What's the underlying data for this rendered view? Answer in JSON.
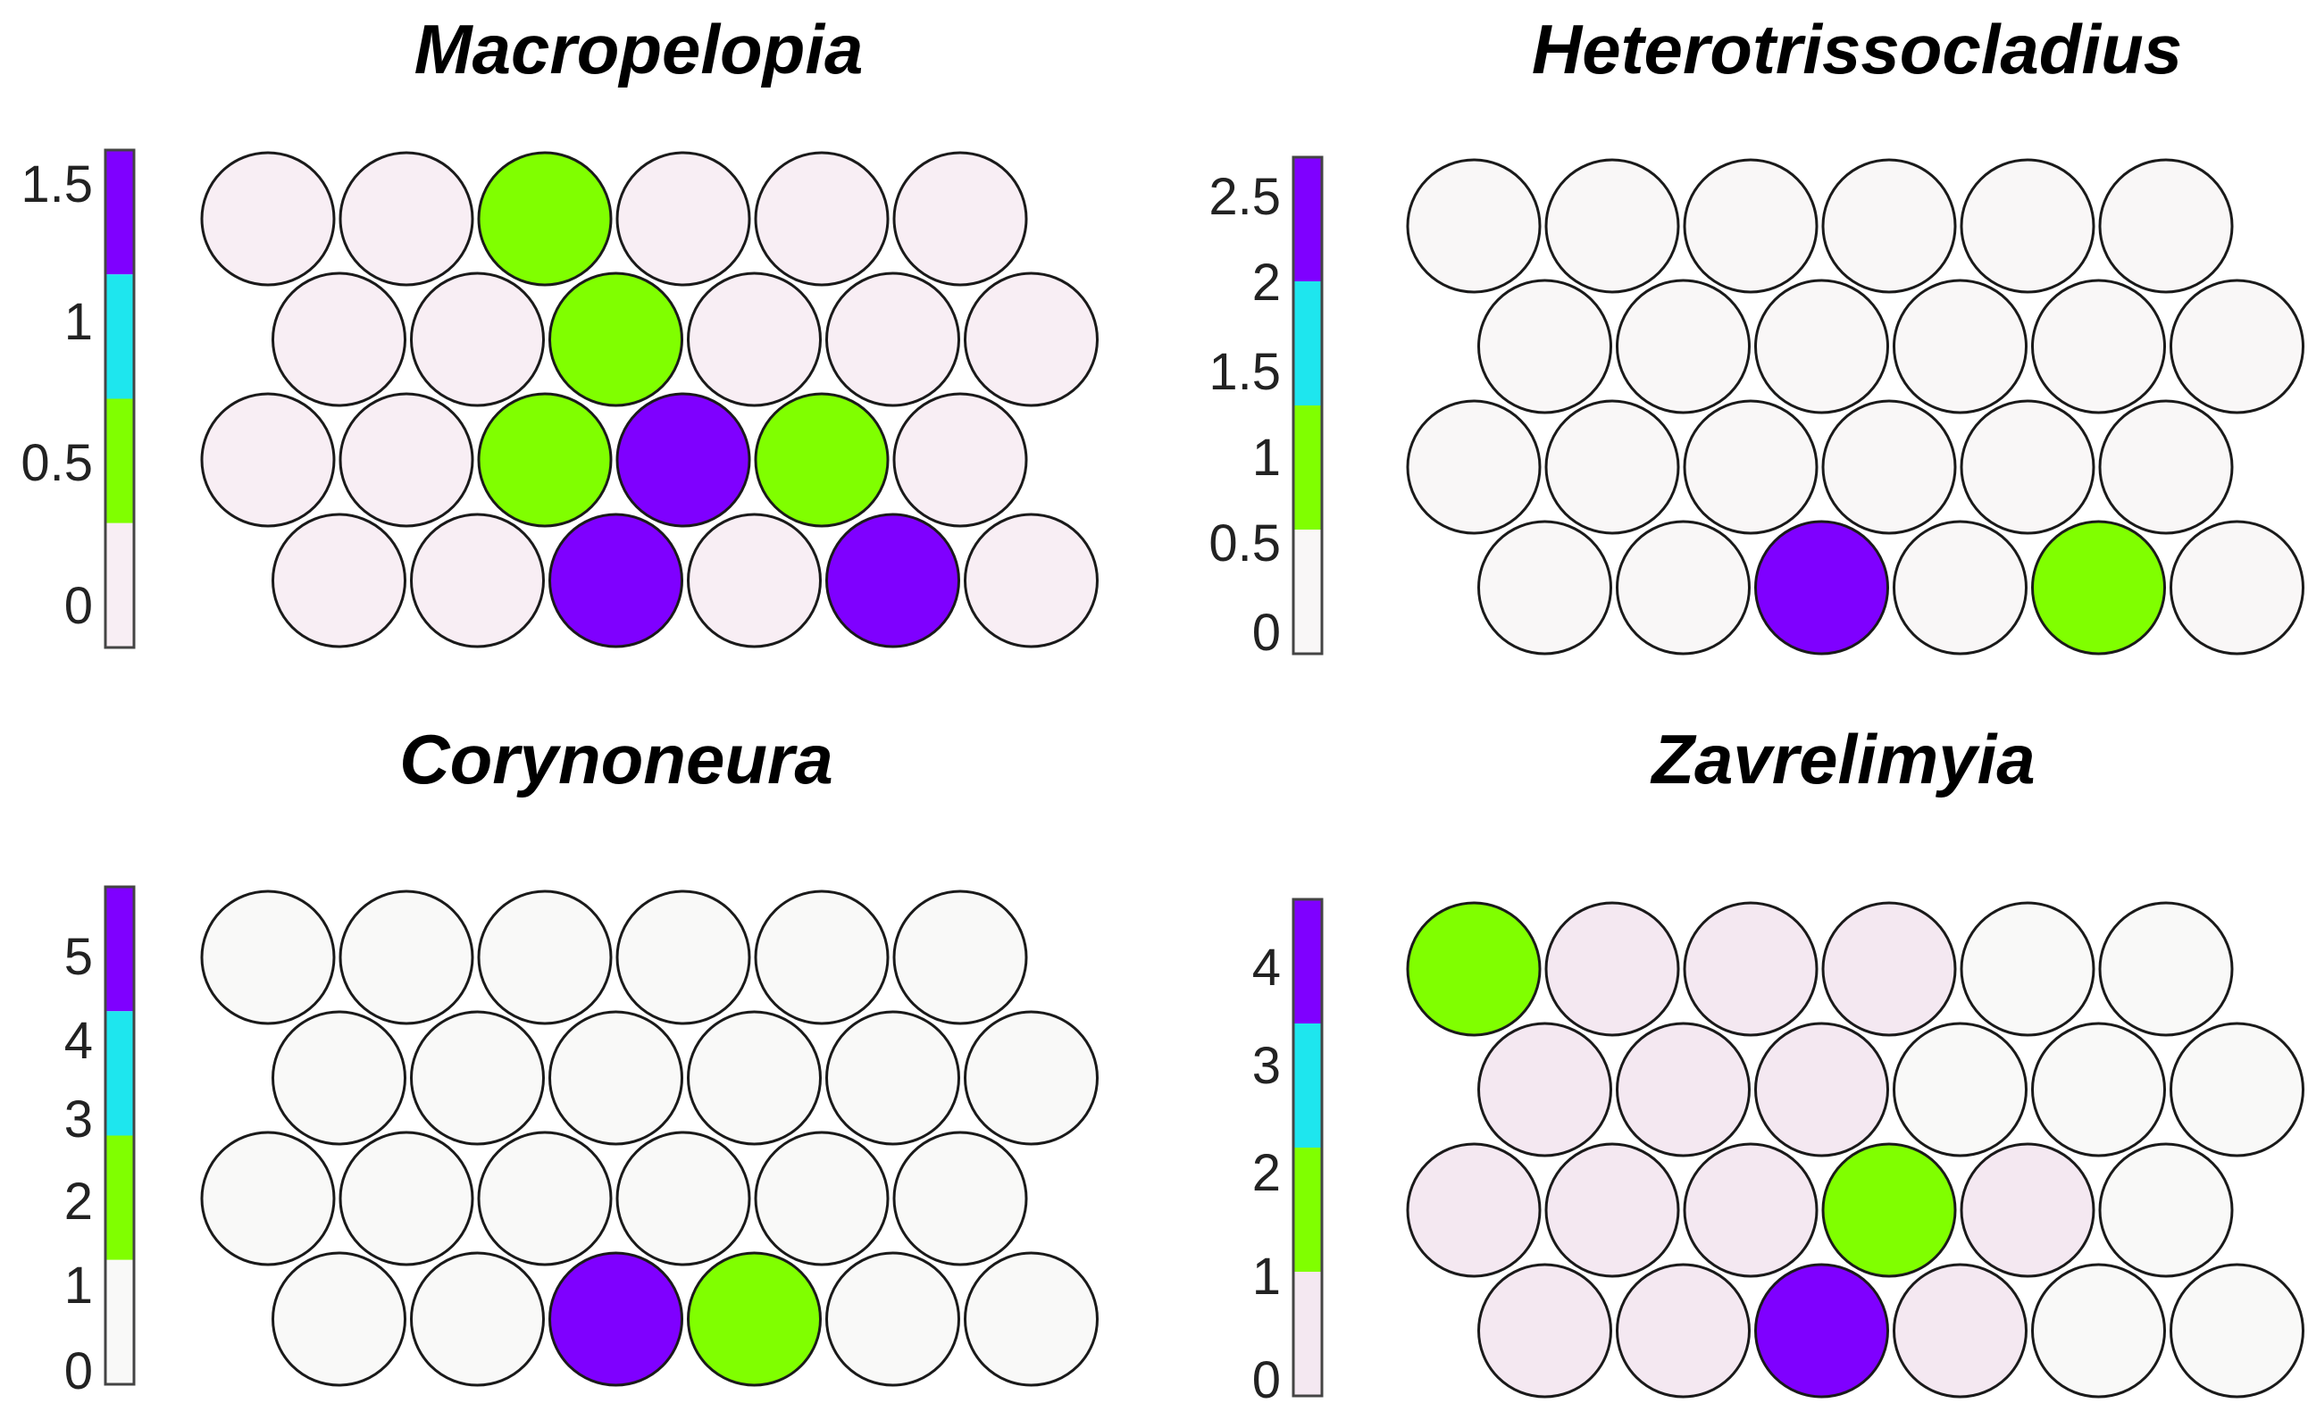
{
  "colors": {
    "purple": "#7f00ff",
    "cyan": "#1ee6ee",
    "green": "#80ff00",
    "light_pink": "#f8eef4",
    "light_pink_2": "#f4e8f1",
    "near_white": "#f9f7f7",
    "off_white": "#f9f9f8",
    "outline": "#000000"
  },
  "panels": [
    {
      "id": "macropelopia",
      "title": "Macropelopia",
      "scale_ticks": [
        "1.5",
        "1",
        "0.5",
        "0"
      ],
      "scale_bands": [
        "purple",
        "cyan",
        "green",
        "light_pink"
      ],
      "grid": [
        [
          "light_pink",
          "light_pink",
          "green",
          "light_pink",
          "light_pink",
          "light_pink"
        ],
        [
          "light_pink",
          "light_pink",
          "green",
          "light_pink",
          "light_pink",
          "light_pink"
        ],
        [
          "light_pink",
          "light_pink",
          "green",
          "purple",
          "green",
          "light_pink"
        ],
        [
          "light_pink",
          "light_pink",
          "purple",
          "light_pink",
          "purple",
          "light_pink"
        ]
      ]
    },
    {
      "id": "heterotrissocladius",
      "title": "Heterotrissocladius",
      "scale_ticks": [
        "2.5",
        "2",
        "1.5",
        "1",
        "0.5",
        "0"
      ],
      "scale_bands": [
        "purple",
        "cyan",
        "green",
        "near_white"
      ],
      "grid": [
        [
          "near_white",
          "near_white",
          "near_white",
          "near_white",
          "near_white",
          "near_white"
        ],
        [
          "near_white",
          "near_white",
          "near_white",
          "near_white",
          "near_white",
          "near_white"
        ],
        [
          "near_white",
          "near_white",
          "near_white",
          "near_white",
          "near_white",
          "near_white"
        ],
        [
          "near_white",
          "near_white",
          "purple",
          "near_white",
          "green",
          "near_white"
        ]
      ]
    },
    {
      "id": "corynoneura",
      "title": "Corynoneura",
      "scale_ticks": [
        "5",
        "4",
        "3",
        "2",
        "1",
        "0"
      ],
      "scale_bands": [
        "purple",
        "cyan",
        "green",
        "off_white"
      ],
      "grid": [
        [
          "off_white",
          "off_white",
          "off_white",
          "off_white",
          "off_white",
          "off_white"
        ],
        [
          "off_white",
          "off_white",
          "off_white",
          "off_white",
          "off_white",
          "off_white"
        ],
        [
          "off_white",
          "off_white",
          "off_white",
          "off_white",
          "off_white",
          "off_white"
        ],
        [
          "off_white",
          "off_white",
          "purple",
          "green",
          "off_white",
          "off_white"
        ]
      ]
    },
    {
      "id": "zavrelimyia",
      "title": "Zavrelimyia",
      "scale_ticks": [
        "4",
        "3",
        "2",
        "1",
        "0"
      ],
      "scale_bands": [
        "purple",
        "cyan",
        "green",
        "light_pink_2"
      ],
      "grid": [
        [
          "green",
          "light_pink_2",
          "light_pink_2",
          "light_pink_2",
          "off_white",
          "off_white"
        ],
        [
          "light_pink_2",
          "light_pink_2",
          "light_pink_2",
          "off_white",
          "off_white",
          "off_white"
        ],
        [
          "light_pink_2",
          "light_pink_2",
          "light_pink_2",
          "green",
          "light_pink_2",
          "off_white"
        ],
        [
          "light_pink_2",
          "light_pink_2",
          "purple",
          "light_pink_2",
          "off_white",
          "off_white"
        ]
      ]
    }
  ]
}
